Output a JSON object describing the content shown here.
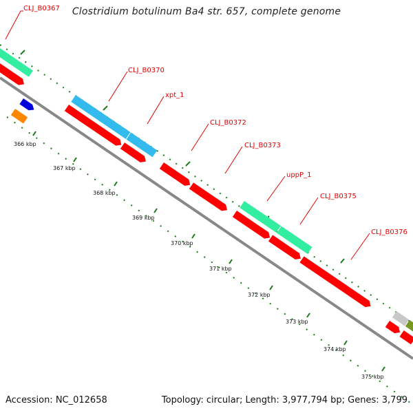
{
  "title": "Clostridium botulinum Ba4 str. 657, complete genome",
  "footer": {
    "accession": "Accession: NC_012658",
    "summary": "Topology: circular; Length: 3,977,794 bp; Genes: 3,799"
  },
  "gene_labels": {
    "clj_b0367": "CLJ_B0367",
    "clj_b0370": "CLJ_B0370",
    "xpt_1": "xpt_1",
    "clj_b0372": "CLJ_B0372",
    "clj_b0373": "CLJ_B0373",
    "uppp_1": "uppP_1",
    "clj_b0375": "CLJ_B0375",
    "clj_b0376": "CLJ_B0376"
  },
  "kbp_labels": {
    "k366": "366 kbp",
    "k367": "367 kbp",
    "k368": "368 kbp",
    "k369": "369 kbp",
    "k370": "370 kbp",
    "k371": "371 kbp",
    "k372": "372 kbp",
    "k373": "373 kbp",
    "k374": "374 kbp",
    "k375": "375 kbp"
  },
  "colors": {
    "cds": "#ff0000",
    "label": "#e00000",
    "teal_feature": "#33eea0",
    "cyan_feature": "#33bbee",
    "backbone": "#888888",
    "tick": "#1a7a1a",
    "blue_feature": "#0000dd",
    "orange_feature": "#ff8800",
    "grey_feature": "#c8c8c8",
    "olive_feature": "#779922"
  }
}
